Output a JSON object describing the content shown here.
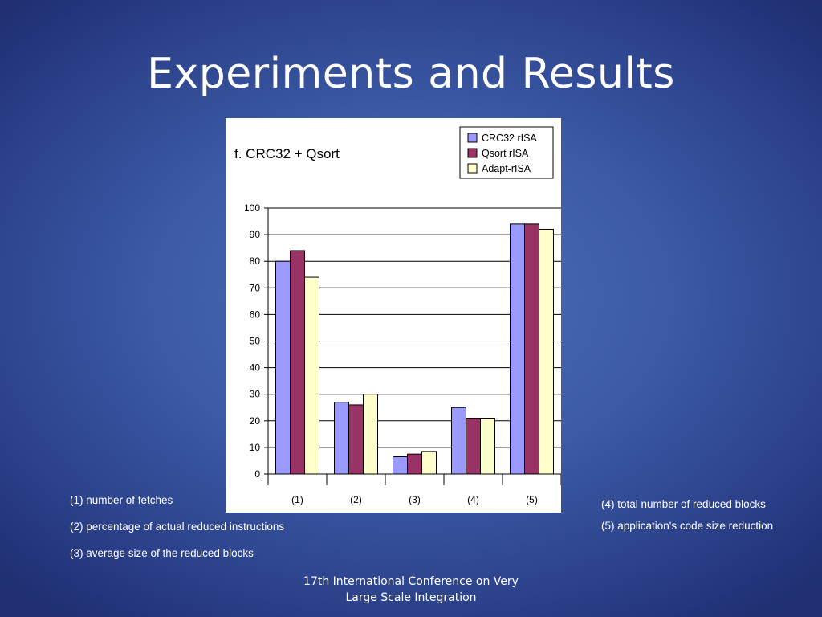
{
  "slide": {
    "title": "Experiments and Results",
    "footer_line1": "17th International Conference on Very",
    "footer_line2": "Large Scale Integration"
  },
  "notes": {
    "n1": "(1) number of fetches",
    "n2": "(2) percentage of actual reduced instructions",
    "n3": "(3) average size of the reduced blocks",
    "n4": "(4) total number of reduced blocks",
    "n5": "(5) application's code size reduction"
  },
  "chart_data": {
    "type": "bar",
    "title": "f. CRC32 + Qsort",
    "xlabel": "",
    "ylabel": "",
    "categories": [
      "(1)",
      "(2)",
      "(3)",
      "(4)",
      "(5)"
    ],
    "series": [
      {
        "name": "CRC32 rISA",
        "color": "#9999ff",
        "values": [
          80,
          27,
          6.5,
          25,
          94
        ]
      },
      {
        "name": "Qsort rISA",
        "color": "#993366",
        "values": [
          84,
          26,
          7.5,
          21,
          94
        ]
      },
      {
        "name": "Adapt-rISA",
        "color": "#ffffcc",
        "values": [
          74,
          30,
          8.5,
          21,
          92
        ]
      }
    ],
    "ylim": [
      0,
      100
    ],
    "yticks": [
      0,
      10,
      20,
      30,
      40,
      50,
      60,
      70,
      80,
      90,
      100
    ],
    "grid": true,
    "legend_position": "top-right"
  }
}
